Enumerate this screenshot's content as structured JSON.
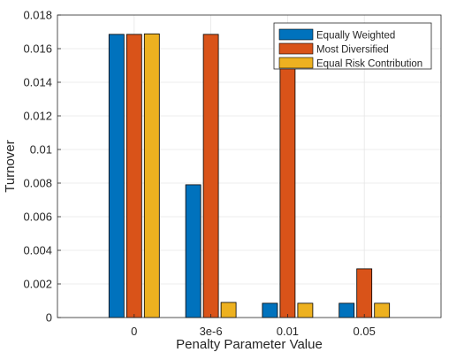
{
  "chart_data": {
    "type": "bar",
    "title": "",
    "xlabel": "Penalty Parameter Value",
    "ylabel": "Turnover",
    "categories": [
      "0",
      "3e-6",
      "0.01",
      "0.05"
    ],
    "series": [
      {
        "name": "Equally Weighted",
        "color": "#0072BD",
        "values": [
          0.01685,
          0.0079,
          0.00085,
          0.00085
        ]
      },
      {
        "name": "Most Diversified",
        "color": "#D95319",
        "values": [
          0.01685,
          0.01685,
          0.0158,
          0.0029
        ]
      },
      {
        "name": "Equal Risk Contribution",
        "color": "#EDB120",
        "values": [
          0.01688,
          0.0009,
          0.00085,
          0.00085
        ]
      }
    ],
    "ylim": [
      0,
      0.018
    ],
    "yticks": [
      0,
      0.002,
      0.004,
      0.006,
      0.008,
      0.01,
      0.012,
      0.014,
      0.016,
      0.018
    ],
    "ytick_labels": [
      "0",
      "0.002",
      "0.004",
      "0.006",
      "0.008",
      "0.01",
      "0.012",
      "0.014",
      "0.016",
      "0.018"
    ],
    "grid": true,
    "legend_position": "top-right"
  }
}
